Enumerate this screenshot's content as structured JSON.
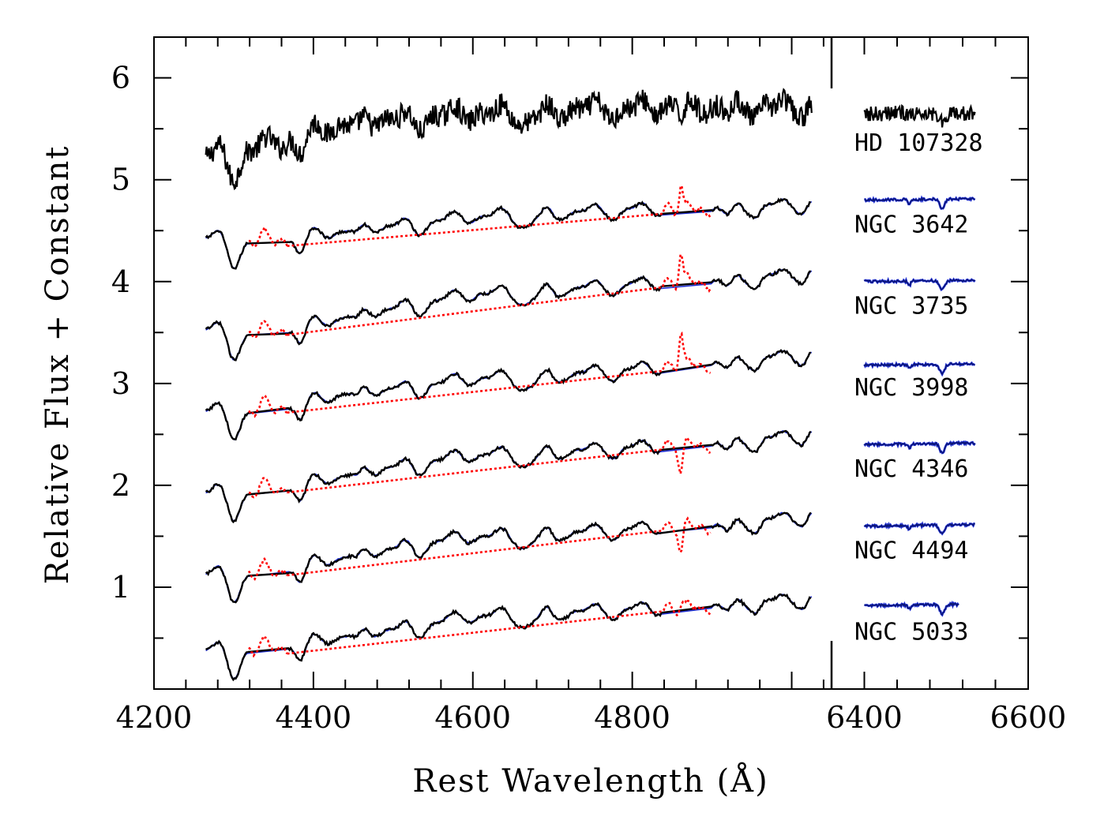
{
  "chart_data": {
    "type": "line",
    "xlabel": "Rest Wavelength (Å)",
    "ylabel": "Relative Flux + Constant",
    "ylim": [
      0,
      6.4
    ],
    "grid": false,
    "panels": [
      {
        "name": "blue",
        "xlim": [
          4200,
          5050
        ],
        "ticks": [
          "4200",
          "4400",
          "4600",
          "4800"
        ],
        "tick_values": [
          4200,
          4400,
          4600,
          4800
        ]
      },
      {
        "name": "red",
        "xlim": [
          6360,
          6600
        ],
        "ticks": [
          "6400",
          "6600"
        ],
        "tick_values": [
          6400,
          6600
        ]
      }
    ],
    "yticks": [
      "1",
      "2",
      "3",
      "4",
      "5",
      "6"
    ],
    "ytick_values": [
      1,
      2,
      3,
      4,
      5,
      6
    ],
    "colors": {
      "data": "#000000",
      "model": "#1f2fd6",
      "masked": "#ff0000"
    },
    "series": [
      {
        "name": "HD 107328",
        "offset": 5.4,
        "blue_base": [
          5.25,
          5.35,
          5.55,
          5.62,
          5.65,
          5.68,
          5.7,
          5.72,
          5.72,
          5.72
        ],
        "red_level": 5.65,
        "model": false
      },
      {
        "name": "NGC 3642",
        "offset": 4.6,
        "blue_base": [
          4.45,
          4.4,
          4.5,
          4.58,
          4.64,
          4.68,
          4.7,
          4.72,
          4.72,
          4.78
        ],
        "red_level": 4.8,
        "model": true,
        "emission": 0.3
      },
      {
        "name": "NGC 3735",
        "offset": 3.8,
        "blue_base": [
          3.55,
          3.5,
          3.65,
          3.78,
          3.88,
          3.92,
          3.96,
          4.0,
          4.02,
          4.1
        ],
        "red_level": 4.0,
        "model": true,
        "emission": 0.35
      },
      {
        "name": "NGC 3998",
        "offset": 3.0,
        "blue_base": [
          2.75,
          2.75,
          2.9,
          2.98,
          3.05,
          3.08,
          3.12,
          3.18,
          3.22,
          3.3
        ],
        "red_level": 3.18,
        "model": true,
        "emission": 0.4
      },
      {
        "name": "NGC 4346",
        "offset": 2.2,
        "blue_base": [
          1.95,
          1.95,
          2.1,
          2.22,
          2.3,
          2.33,
          2.36,
          2.4,
          2.42,
          2.52
        ],
        "red_level": 2.4,
        "model": true,
        "emission": -0.2
      },
      {
        "name": "NGC 4494",
        "offset": 1.4,
        "blue_base": [
          1.15,
          1.15,
          1.3,
          1.42,
          1.5,
          1.53,
          1.56,
          1.6,
          1.62,
          1.72
        ],
        "red_level": 1.6,
        "model": true,
        "emission": -0.18
      },
      {
        "name": "NGC 5033",
        "offset": 0.6,
        "blue_base": [
          0.4,
          0.4,
          0.52,
          0.62,
          0.72,
          0.75,
          0.78,
          0.8,
          0.84,
          0.9
        ],
        "red_level": 0.82,
        "model": true,
        "emission": 0.1
      }
    ]
  }
}
